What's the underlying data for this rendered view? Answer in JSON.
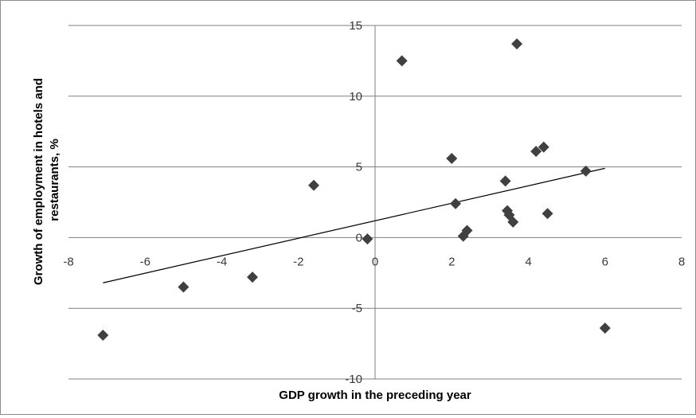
{
  "chart_data": {
    "type": "scatter",
    "xlabel": "GDP growth in the preceding year",
    "ylabel_lines": [
      "Growth of employment in hotels and",
      "restaurants, %"
    ],
    "xlim": [
      -8,
      8
    ],
    "ylim": [
      -10,
      15
    ],
    "x_ticks": [
      -8,
      -6,
      -4,
      -2,
      0,
      2,
      4,
      6,
      8
    ],
    "y_ticks": [
      -10,
      -5,
      0,
      5,
      10,
      15
    ],
    "grid": "horizontal",
    "marker": "diamond",
    "marker_color": "#404040",
    "trendline": {
      "type": "linear",
      "color": "#000000",
      "from": {
        "x": -7.1,
        "y": -3.2
      },
      "to": {
        "x": 6.0,
        "y": 4.9
      }
    },
    "points": [
      {
        "x": -7.1,
        "y": -6.9
      },
      {
        "x": -5.0,
        "y": -3.5
      },
      {
        "x": -3.2,
        "y": -2.8
      },
      {
        "x": -1.6,
        "y": 3.7
      },
      {
        "x": -0.2,
        "y": -0.1
      },
      {
        "x": 0.7,
        "y": 12.5
      },
      {
        "x": 2.0,
        "y": 5.6
      },
      {
        "x": 2.1,
        "y": 2.4
      },
      {
        "x": 2.3,
        "y": 0.1
      },
      {
        "x": 2.4,
        "y": 0.5
      },
      {
        "x": 3.4,
        "y": 4.0
      },
      {
        "x": 3.45,
        "y": 1.9
      },
      {
        "x": 3.5,
        "y": 1.6
      },
      {
        "x": 3.6,
        "y": 1.1
      },
      {
        "x": 3.7,
        "y": 13.7
      },
      {
        "x": 4.2,
        "y": 6.1
      },
      {
        "x": 4.4,
        "y": 6.4
      },
      {
        "x": 4.5,
        "y": 1.7
      },
      {
        "x": 5.5,
        "y": 4.7
      },
      {
        "x": 6.0,
        "y": -6.4
      }
    ]
  }
}
